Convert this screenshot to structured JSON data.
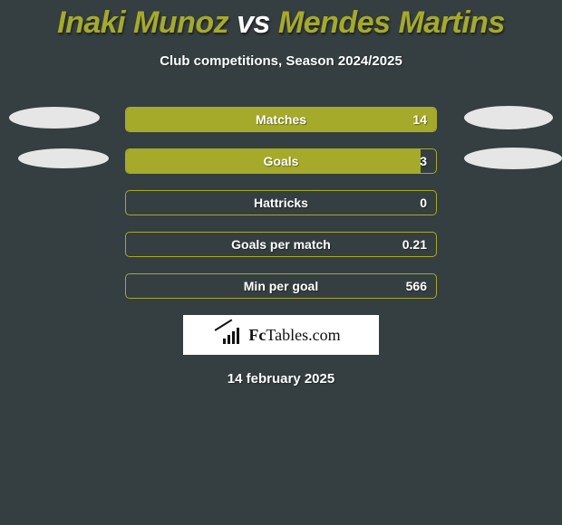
{
  "colors": {
    "background": "#353e41",
    "accent": "#a6aa2a",
    "ellipse": "#e6e6e6",
    "text": "#ffffff"
  },
  "title": {
    "player1": "Inaki Munoz",
    "vs": "vs",
    "player2": "Mendes Martins"
  },
  "subtitle": "Club competitions, Season 2024/2025",
  "stats": [
    {
      "label": "Matches",
      "value": "14",
      "fill_pct": 100
    },
    {
      "label": "Goals",
      "value": "3",
      "fill_pct": 95
    },
    {
      "label": "Hattricks",
      "value": "0",
      "fill_pct": 0
    },
    {
      "label": "Goals per match",
      "value": "0.21",
      "fill_pct": 0
    },
    {
      "label": "Min per goal",
      "value": "566",
      "fill_pct": 0
    }
  ],
  "brand": {
    "prefix": "Fc",
    "rest": "Tables.com"
  },
  "date": "14 february 2025"
}
